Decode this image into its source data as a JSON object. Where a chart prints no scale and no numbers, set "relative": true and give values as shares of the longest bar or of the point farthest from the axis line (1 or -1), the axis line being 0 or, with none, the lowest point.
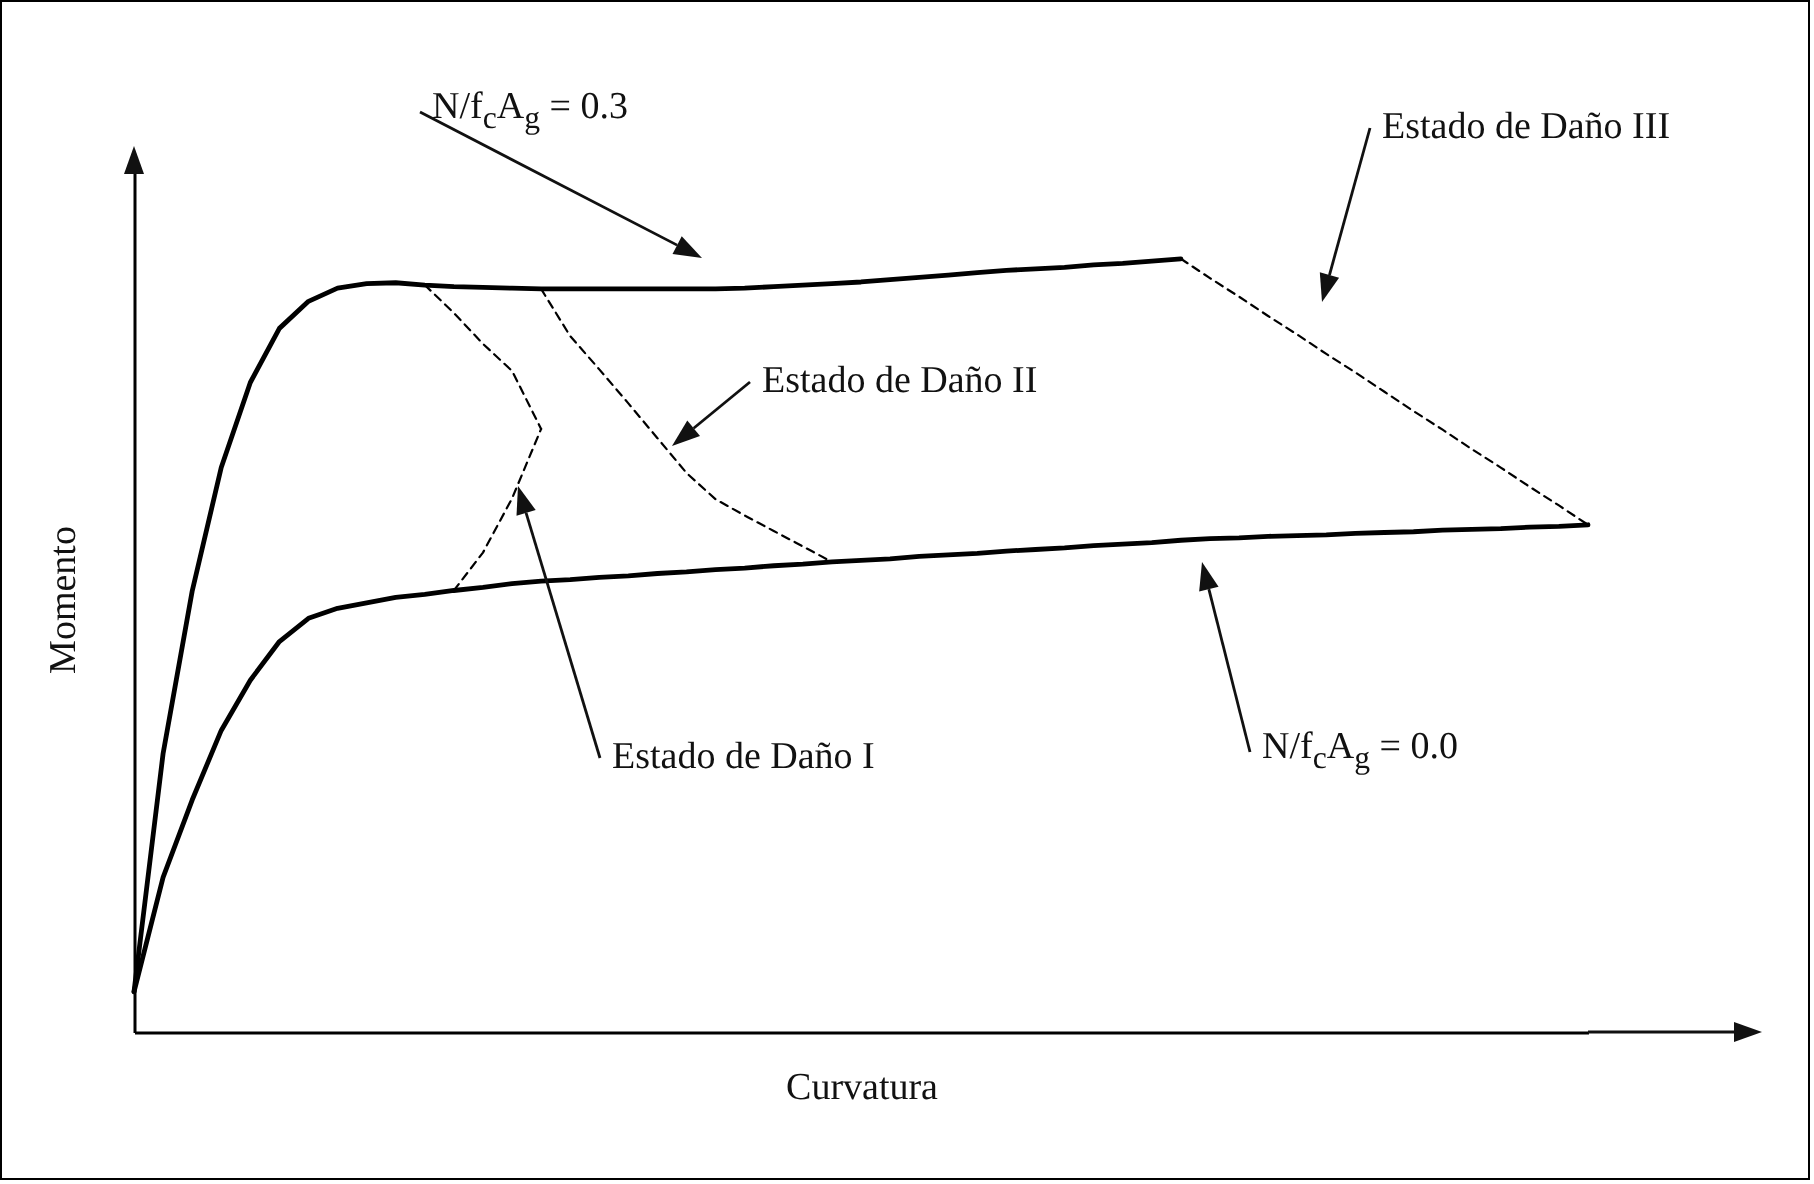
{
  "chart_data": {
    "type": "line",
    "relative": true,
    "xlabel": "Curvatura",
    "ylabel": "Momento",
    "tick_labels": false,
    "categories": [
      null,
      null,
      null,
      null,
      null,
      null,
      null,
      null,
      null,
      null,
      null,
      null,
      null,
      null,
      null,
      null,
      null,
      null,
      null,
      null,
      null,
      null,
      null,
      null,
      null,
      null,
      null,
      null,
      null,
      null,
      null,
      null,
      null,
      null,
      null,
      null,
      null,
      null,
      null,
      null,
      null,
      null,
      null,
      null,
      null,
      null,
      null,
      null,
      null,
      null,
      null
    ],
    "series": [
      {
        "color": "#000000",
        "line_style": "solid",
        "values": [
          0.052,
          0.36,
          0.57,
          0.73,
          0.84,
          0.91,
          0.945,
          0.962,
          0.968,
          0.969,
          0.966,
          0.964,
          0.963,
          0.962,
          0.961,
          0.961,
          0.961,
          0.961,
          0.961,
          0.961,
          0.961,
          0.962,
          0.964,
          0.966,
          0.968,
          0.97,
          0.973,
          0.976,
          0.979,
          0.982,
          0.985,
          0.987,
          0.989,
          0.992,
          0.994,
          0.997,
          1,
          null,
          null,
          null,
          null,
          null,
          null,
          null,
          null,
          null,
          null,
          null,
          null,
          null,
          null
        ]
      },
      {
        "color": "#000000",
        "line_style": "solid",
        "values": [
          0.052,
          0.2,
          0.3,
          0.39,
          0.455,
          0.505,
          0.535,
          0.548,
          0.555,
          0.562,
          0.566,
          0.571,
          0.575,
          0.58,
          0.583,
          0.585,
          0.588,
          0.59,
          0.593,
          0.595,
          0.598,
          0.6,
          0.603,
          0.605,
          0.608,
          0.61,
          0.612,
          0.615,
          0.617,
          0.619,
          0.622,
          0.624,
          0.626,
          0.629,
          0.631,
          0.633,
          0.636,
          0.638,
          0.639,
          0.641,
          0.642,
          0.643,
          0.645,
          0.646,
          0.647,
          0.649,
          0.65,
          0.651,
          0.653,
          0.654,
          0.656
        ]
      },
      {
        "color": "#000000",
        "line_style": "dashed",
        "values": [
          null,
          null,
          null,
          null,
          null,
          null,
          null,
          null,
          null,
          null,
          0.966,
          0.93,
          0.89,
          0.855,
          0.78,
          null,
          null,
          null,
          null,
          null,
          null,
          null,
          null,
          null,
          null,
          null,
          null,
          null,
          null,
          null,
          null,
          null,
          null,
          null,
          null,
          null,
          null,
          null,
          null,
          null,
          null,
          null,
          null,
          null,
          null,
          null,
          null,
          null,
          null,
          null,
          null
        ]
      },
      {
        "color": "#000000",
        "line_style": "dashed",
        "values": [
          null,
          null,
          null,
          null,
          null,
          null,
          null,
          null,
          null,
          null,
          null,
          0.571,
          0.62,
          0.69,
          0.78,
          null,
          null,
          null,
          null,
          null,
          null,
          null,
          null,
          null,
          null,
          null,
          null,
          null,
          null,
          null,
          null,
          null,
          null,
          null,
          null,
          null,
          null,
          null,
          null,
          null,
          null,
          null,
          null,
          null,
          null,
          null,
          null,
          null,
          null,
          null,
          null
        ]
      },
      {
        "color": "#000000",
        "line_style": "dashed",
        "values": [
          null,
          null,
          null,
          null,
          null,
          null,
          null,
          null,
          null,
          null,
          null,
          null,
          null,
          null,
          0.961,
          0.9,
          0.857,
          0.813,
          0.768,
          0.723,
          0.689,
          0.668,
          0.648,
          0.628,
          0.608,
          null,
          null,
          null,
          null,
          null,
          null,
          null,
          null,
          null,
          null,
          null,
          null,
          null,
          null,
          null,
          null,
          null,
          null,
          null,
          null,
          null,
          null,
          null,
          null,
          null,
          null
        ]
      },
      {
        "color": "#000000",
        "line_style": "dashed",
        "values": [
          null,
          null,
          null,
          null,
          null,
          null,
          null,
          null,
          null,
          null,
          null,
          null,
          null,
          null,
          null,
          null,
          null,
          null,
          null,
          null,
          null,
          null,
          null,
          null,
          null,
          null,
          null,
          null,
          null,
          null,
          null,
          null,
          null,
          null,
          null,
          null,
          1,
          0.975,
          0.951,
          0.926,
          0.902,
          0.877,
          0.853,
          0.828,
          0.803,
          0.779,
          0.754,
          0.73,
          0.705,
          0.681,
          0.656
        ]
      }
    ],
    "annotations": [
      "N/f$_{c}$A$_{g}$ = 0.3",
      "Estado de Daño III",
      "Estado de Daño II",
      "Estado de Daño I",
      "N/f$_{c}$A$_{g}$ = 0.0"
    ]
  }
}
